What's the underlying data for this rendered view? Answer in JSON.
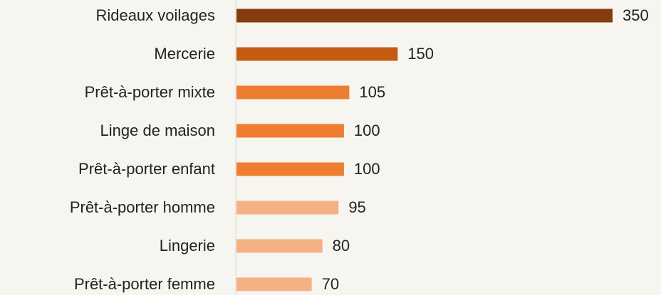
{
  "chart_data": {
    "type": "barh",
    "categories": [
      "Rideaux voilages",
      "Mercerie",
      "Prêt-à-porter mixte",
      "Linge de maison",
      "Prêt-à-porter enfant",
      "Prêt-à-porter homme",
      "Lingerie",
      "Prêt-à-porter femme"
    ],
    "values": [
      350,
      150,
      105,
      100,
      100,
      95,
      80,
      70
    ],
    "colors": [
      "#843c0c",
      "#c55a11",
      "#ed7d31",
      "#ed7d31",
      "#ed7d31",
      "#f4b183",
      "#f4b183",
      "#f4b183"
    ]
  }
}
